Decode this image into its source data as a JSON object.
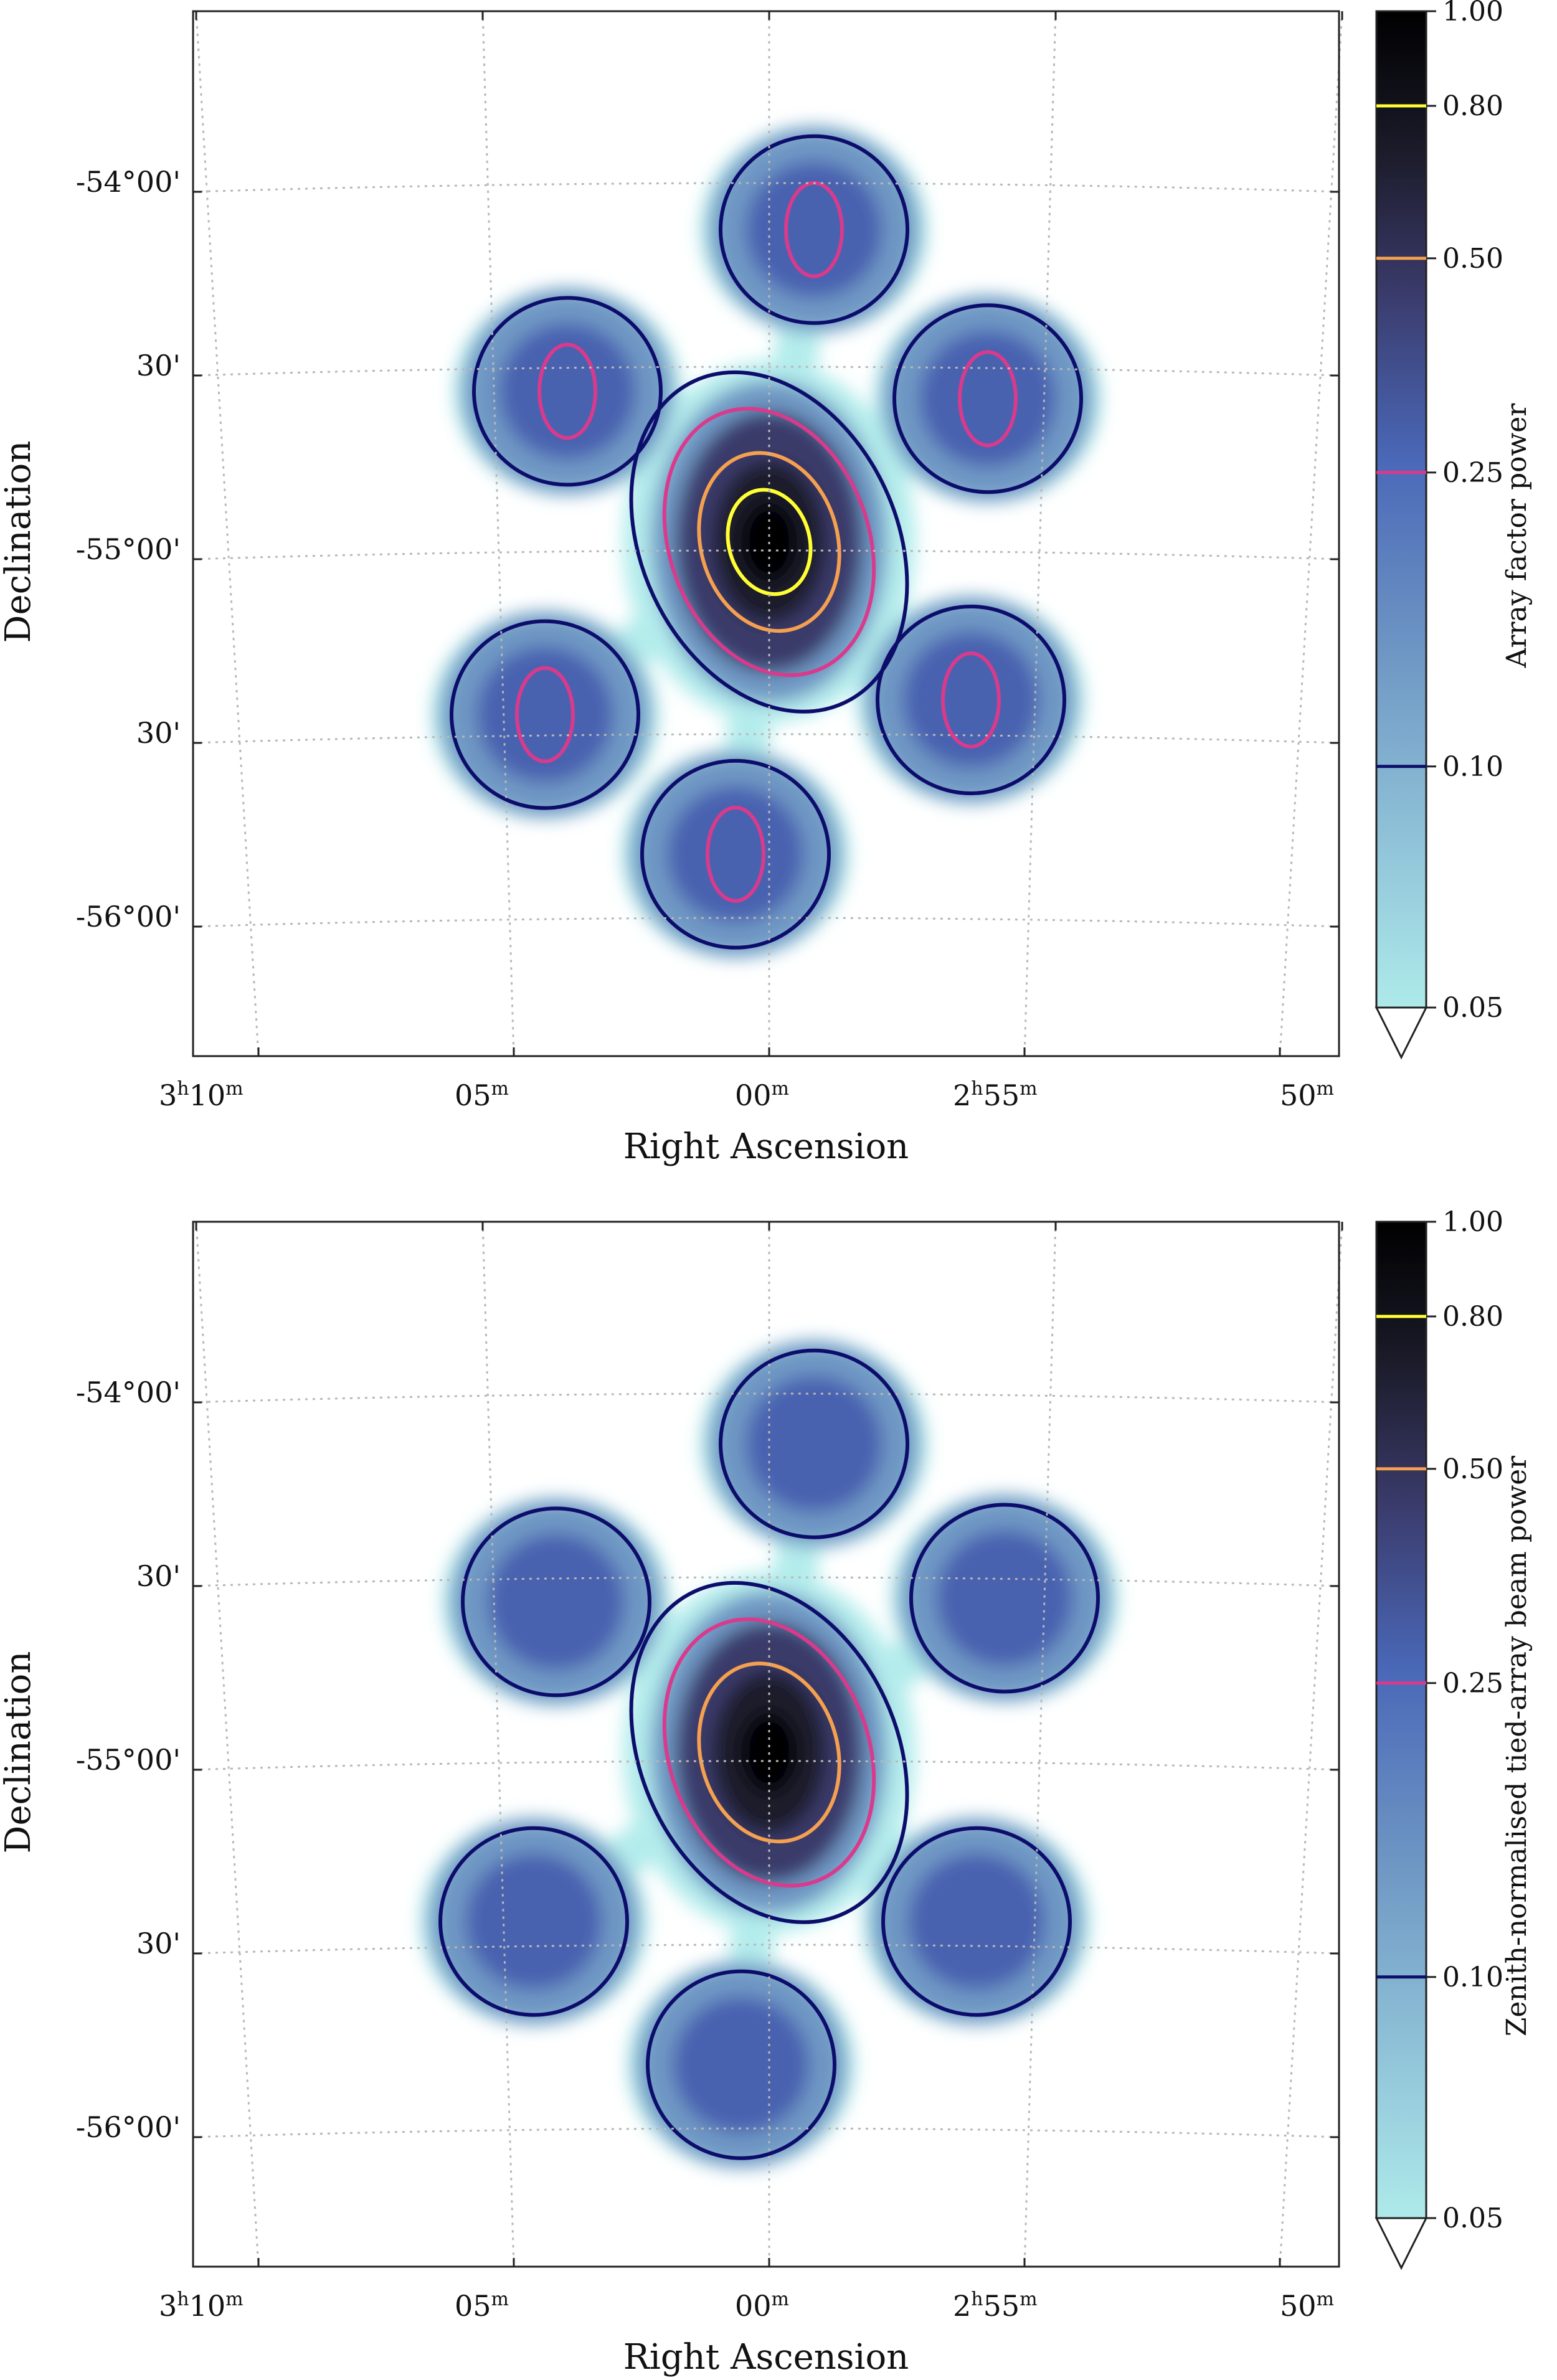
{
  "chart_data": [
    {
      "type": "heatmap",
      "title": "",
      "xlabel": "Right Ascension",
      "ylabel": "Declination",
      "colorbar_label": "Array factor power",
      "x_ticks": [
        {
          "hours": "3",
          "h": "h",
          "minutes": "10",
          "m": "m"
        },
        {
          "hours": "",
          "h": "",
          "minutes": "05",
          "m": "m"
        },
        {
          "hours": "",
          "h": "",
          "minutes": "00",
          "m": "m"
        },
        {
          "hours": "2",
          "h": "h",
          "minutes": "55",
          "m": "m"
        },
        {
          "hours": "",
          "h": "",
          "minutes": "50",
          "m": "m"
        }
      ],
      "y_ticks": [
        "-54°00'",
        "30'",
        "-55°00'",
        "30'",
        "-56°00'"
      ],
      "colorbar_ticks": [
        "1.00",
        "0.80",
        "0.50",
        "0.25",
        "0.10",
        "0.05"
      ],
      "contour_levels": [
        {
          "level": 0.8,
          "color": "#ffff33"
        },
        {
          "level": 0.5,
          "color": "#f5a050"
        },
        {
          "level": 0.25,
          "color": "#d93a8c"
        },
        {
          "level": 0.1,
          "color": "#0d0d6b"
        }
      ],
      "colorbar_extend": "min",
      "lobes": [
        {
          "ra_min": 0.0,
          "dec_deg": -54.97,
          "peak": 1.0,
          "kind": "main"
        },
        {
          "ra_min": 0.8,
          "dec_deg": -54.12,
          "peak": 0.3,
          "kind": "side"
        },
        {
          "ra_min": -3.6,
          "dec_deg": -54.56,
          "peak": 0.29,
          "kind": "side"
        },
        {
          "ra_min": 3.9,
          "dec_deg": -54.58,
          "peak": 0.29,
          "kind": "side"
        },
        {
          "ra_min": 3.6,
          "dec_deg": -55.4,
          "peak": 0.29,
          "kind": "side"
        },
        {
          "ra_min": -4.0,
          "dec_deg": -55.44,
          "peak": 0.29,
          "kind": "side"
        },
        {
          "ra_min": -0.6,
          "dec_deg": -55.82,
          "peak": 0.28,
          "kind": "side"
        }
      ]
    },
    {
      "type": "heatmap",
      "title": "",
      "xlabel": "Right Ascension",
      "ylabel": "Declination",
      "colorbar_label": "Zenith-normalised tied-array beam power",
      "x_ticks": [
        {
          "hours": "3",
          "h": "h",
          "minutes": "10",
          "m": "m"
        },
        {
          "hours": "",
          "h": "",
          "minutes": "05",
          "m": "m"
        },
        {
          "hours": "",
          "h": "",
          "minutes": "00",
          "m": "m"
        },
        {
          "hours": "2",
          "h": "h",
          "minutes": "55",
          "m": "m"
        },
        {
          "hours": "",
          "h": "",
          "minutes": "50",
          "m": "m"
        }
      ],
      "y_ticks": [
        "-54°00'",
        "30'",
        "-55°00'",
        "30'",
        "-56°00'"
      ],
      "colorbar_ticks": [
        "1.00",
        "0.80",
        "0.50",
        "0.25",
        "0.10",
        "0.05"
      ],
      "contour_levels": [
        {
          "level": 0.8,
          "color": "#ffff33"
        },
        {
          "level": 0.5,
          "color": "#f5a050"
        },
        {
          "level": 0.25,
          "color": "#d93a8c"
        },
        {
          "level": 0.1,
          "color": "#0d0d6b"
        }
      ],
      "colorbar_extend": "min",
      "lobes": [
        {
          "ra_min": 0.0,
          "dec_deg": -54.97,
          "peak": 0.7,
          "kind": "main"
        },
        {
          "ra_min": 0.8,
          "dec_deg": -54.13,
          "peak": 0.22,
          "kind": "side"
        },
        {
          "ra_min": -3.8,
          "dec_deg": -54.56,
          "peak": 0.22,
          "kind": "side"
        },
        {
          "ra_min": 4.2,
          "dec_deg": -54.55,
          "peak": 0.22,
          "kind": "side"
        },
        {
          "ra_min": 3.7,
          "dec_deg": -55.43,
          "peak": 0.22,
          "kind": "side"
        },
        {
          "ra_min": -4.2,
          "dec_deg": -55.43,
          "peak": 0.22,
          "kind": "side"
        },
        {
          "ra_min": -0.5,
          "dec_deg": -55.82,
          "peak": 0.22,
          "kind": "side"
        }
      ]
    }
  ]
}
